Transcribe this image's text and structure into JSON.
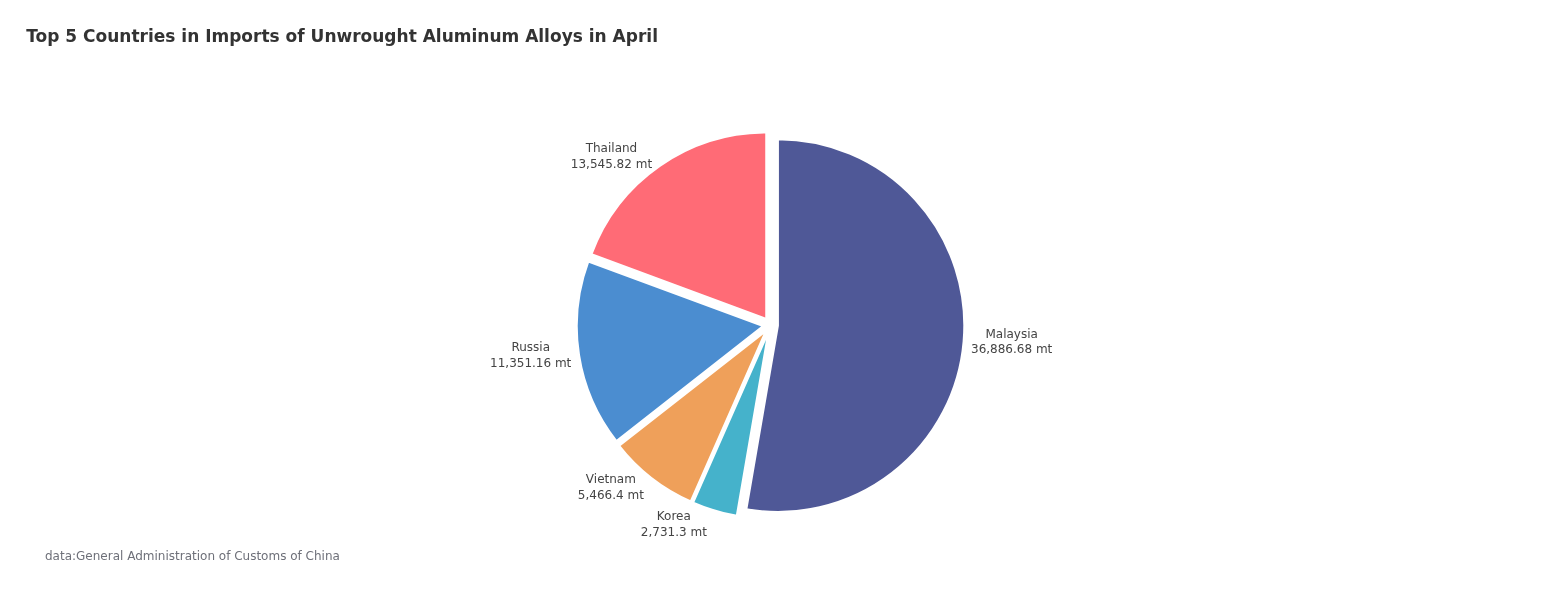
{
  "chart_data": {
    "type": "pie",
    "title": "Top 5 Countries in Imports of Unwrought Aluminum Alloys in April",
    "categories": [
      "Malaysia",
      "Korea",
      "Vietnam",
      "Russia",
      "Thailand"
    ],
    "values": [
      36886.68,
      2731.3,
      5466.4,
      11351.16,
      13545.82
    ],
    "value_labels": [
      "36,886.68 mt",
      "2,731.3 mt",
      "5,466.4 mt",
      "11,351.16 mt",
      "13,545.82 mt"
    ],
    "colors": [
      "#4f5897",
      "#45b2cb",
      "#efa05a",
      "#4b8dd0",
      "#ff6b76"
    ],
    "annotations": [
      "data:General Administration of Customs of China"
    ],
    "legend": false
  }
}
